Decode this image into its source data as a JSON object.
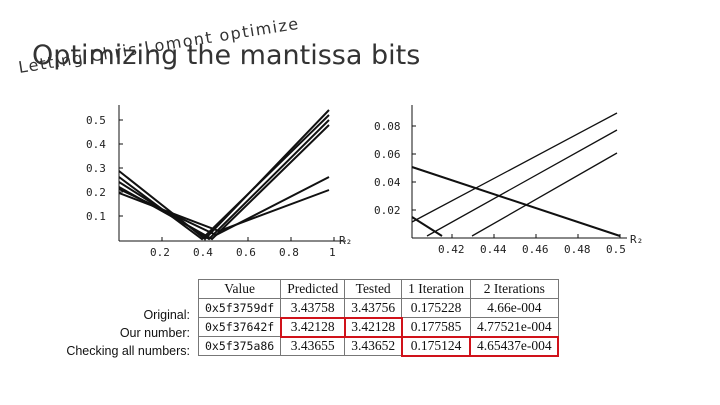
{
  "slide": {
    "title": "Optimizing the mantissa bits",
    "overlay_text": "Letting Chris Lomont optimize"
  },
  "left_plot": {
    "x_ticks": [
      "0.2",
      "0.4",
      "0.6",
      "0.8",
      "1"
    ],
    "y_ticks": [
      "0.1",
      "0.2",
      "0.3",
      "0.4",
      "0.5"
    ],
    "xlabel": "R₂"
  },
  "right_plot": {
    "x_ticks": [
      "0.42",
      "0.44",
      "0.46",
      "0.48",
      "0.5"
    ],
    "y_ticks": [
      "0.02",
      "0.04",
      "0.06",
      "0.08"
    ],
    "xlabel": "R₂"
  },
  "row_labels": [
    "Original:",
    "Our number:",
    "Checking all numbers:"
  ],
  "table": {
    "headers": [
      "Value",
      "Predicted",
      "Tested",
      "1 Iteration",
      "2 Iterations"
    ],
    "rows": [
      [
        "0x5f3759df",
        "3.43758",
        "3.43756",
        "0.175228",
        "4.66e-004"
      ],
      [
        "0x5f37642f",
        "3.42128",
        "3.42128",
        "0.177585",
        "4.77521e-004"
      ],
      [
        "0x5f375a86",
        "3.43655",
        "3.43652",
        "0.175124",
        "4.65437e-004"
      ]
    ]
  },
  "highlight_color": "#d0121a"
}
